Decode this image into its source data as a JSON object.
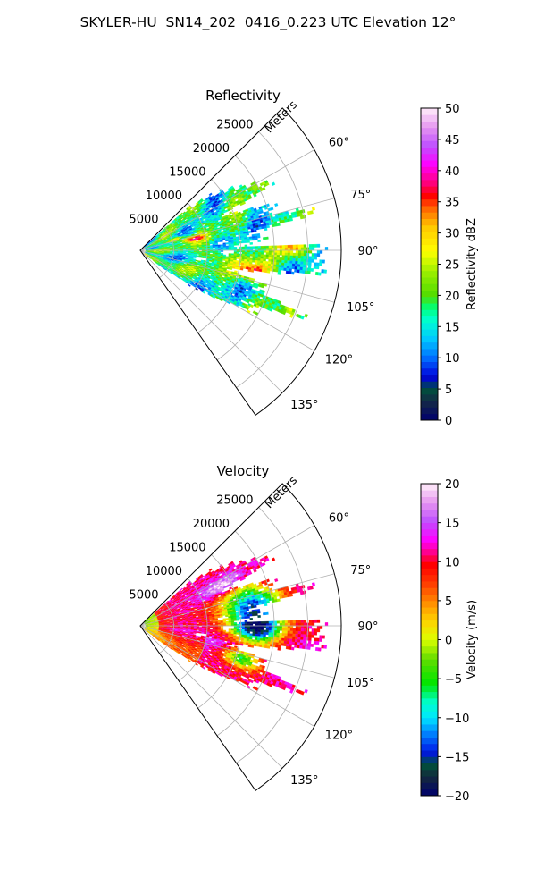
{
  "suptitle": "SKYLER-HU  SN14_202  0416_0.223 UTC Elevation 12°",
  "chart_data": [
    {
      "type": "heatmap",
      "projection": "polar sector (PPI radar scan)",
      "title": "Reflectivity",
      "range_axis_label": "Meters",
      "range_ticks": [
        5000,
        10000,
        15000,
        20000,
        25000
      ],
      "range_lim": [
        0,
        30000
      ],
      "azimuth_ticks": [
        "60°",
        "75°",
        "90°",
        "105°",
        "120°",
        "135°"
      ],
      "azimuth_lim": [
        45,
        145
      ],
      "grid": true,
      "colorbar": {
        "label": "Reflectivity dBZ",
        "ticks": [
          0,
          5,
          10,
          15,
          20,
          25,
          30,
          35,
          40,
          45,
          50
        ],
        "range": [
          0,
          50
        ],
        "location": "right"
      },
      "features": [
        {
          "description": "widespread weak echo",
          "value_range": [
            15,
            25
          ]
        },
        {
          "description": "core near 95-100 deg, 15-20 km",
          "value": 38
        },
        {
          "description": "core near 88 deg, 23 km",
          "value": 35
        },
        {
          "description": "cores near 75-80 deg, 5-10 km",
          "value": 40
        }
      ]
    },
    {
      "type": "heatmap",
      "projection": "polar sector (PPI radar scan)",
      "title": "Velocity",
      "range_axis_label": "Meters",
      "range_ticks": [
        5000,
        10000,
        15000,
        20000,
        25000
      ],
      "range_lim": [
        0,
        30000
      ],
      "azimuth_ticks": [
        "60°",
        "75°",
        "90°",
        "105°",
        "120°",
        "135°"
      ],
      "azimuth_lim": [
        45,
        145
      ],
      "grid": true,
      "colorbar": {
        "label": "Velocity (m/s)",
        "ticks": [
          -20,
          -15,
          -10,
          -5,
          0,
          5,
          10,
          15,
          20
        ],
        "range": [
          -20,
          20
        ],
        "location": "right"
      },
      "features": [
        {
          "description": "near-radar small velocities",
          "value_range": [
            -5,
            5
          ]
        },
        {
          "description": "southern half inbound-away positive",
          "value_range": [
            5,
            12
          ]
        },
        {
          "description": "northern far ring",
          "value": 15
        },
        {
          "description": "eastern region negative",
          "value": -11
        }
      ]
    }
  ]
}
